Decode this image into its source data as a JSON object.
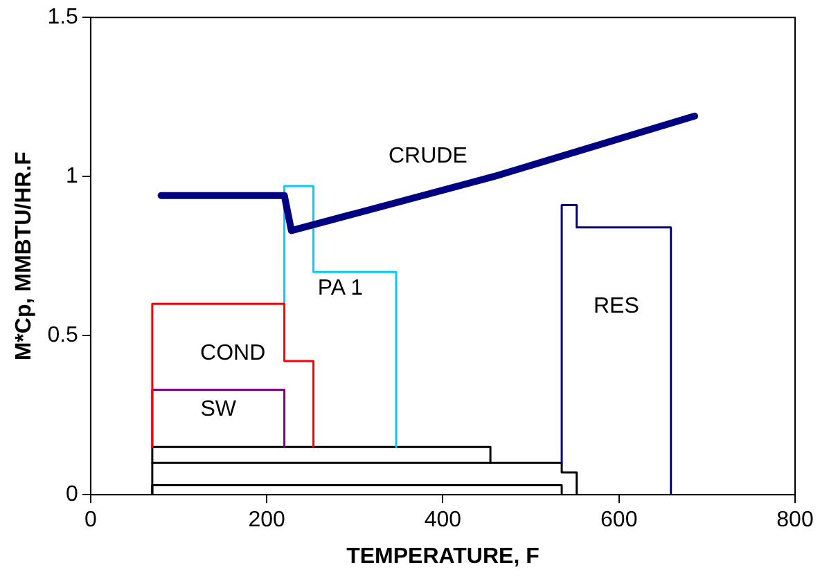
{
  "chart_data": {
    "type": "line",
    "xlabel": "TEMPERATURE, F",
    "ylabel": "M*Cp, MMBTU/HR.F",
    "xlim": [
      0,
      800
    ],
    "xticks": [
      0,
      200,
      400,
      600,
      800
    ],
    "ylim": [
      0,
      1.5
    ],
    "yticks": [
      0,
      0.5,
      1,
      1.5
    ],
    "grid": false,
    "legend": false,
    "marker": "none",
    "line_style": "solid",
    "series": [
      {
        "name": "CRUDE",
        "color": "#000080",
        "x": [
          80,
          220,
          228,
          458,
          686
        ],
        "values": [
          0.94,
          0.94,
          0.83,
          1.0,
          1.19
        ]
      },
      {
        "name": "COND",
        "color": "#ff0000",
        "x": [
          70,
          70,
          220,
          220,
          253,
          253
        ],
        "values": [
          0.15,
          0.6,
          0.6,
          0.42,
          0.42,
          0.15
        ]
      },
      {
        "name": "SW",
        "color": "#800080",
        "x": [
          70,
          70,
          220,
          220
        ],
        "values": [
          0.15,
          0.33,
          0.33,
          0.15
        ]
      },
      {
        "name": "PA 1",
        "color": "#00ccff",
        "x": [
          220,
          220,
          253,
          253,
          347,
          347
        ],
        "values": [
          0.6,
          0.97,
          0.97,
          0.7,
          0.7,
          0.15
        ]
      },
      {
        "name": "RES",
        "color": "#000080",
        "x": [
          535,
          535,
          552,
          552,
          659,
          659
        ],
        "values": [
          0.1,
          0.91,
          0.91,
          0.84,
          0.84,
          0
        ]
      },
      {
        "color": "#000000",
        "x": [
          70,
          70,
          454,
          454
        ],
        "values": [
          0.1,
          0.15,
          0.15,
          0.1
        ]
      },
      {
        "color": "#000000",
        "x": [
          70,
          70,
          535,
          535,
          552,
          552
        ],
        "values": [
          0,
          0.1,
          0.1,
          0.07,
          0.07,
          0
        ]
      },
      {
        "color": "#000000",
        "x": [
          70,
          70,
          535,
          535
        ],
        "values": [
          0,
          0.03,
          0.03,
          0
        ]
      }
    ]
  }
}
